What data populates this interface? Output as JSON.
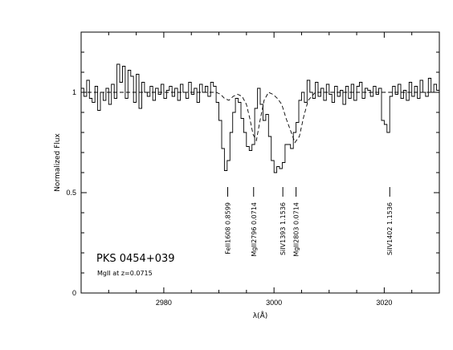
{
  "chart_data": {
    "type": "line",
    "title": "PKS 0454+039",
    "subtitle": "MgII at z=0.0715",
    "xlabel": "λ(Å)",
    "ylabel": "Normalized Flux",
    "xlim": [
      2965,
      3030
    ],
    "ylim": [
      0,
      1.3
    ],
    "x_ticks": [
      2980,
      3000,
      3020
    ],
    "y_ticks": [
      0,
      0.5,
      1
    ],
    "y_tick_labels": [
      "0",
      "0.5",
      "1"
    ],
    "grid": false,
    "series": [
      {
        "style": "solid-step",
        "x": [
          2965.0,
          2965.5,
          2966.0,
          2966.5,
          2967.0,
          2967.5,
          2968.0,
          2968.5,
          2969.0,
          2969.5,
          2970.0,
          2970.5,
          2971.0,
          2971.5,
          2972.0,
          2972.5,
          2973.0,
          2973.5,
          2974.0,
          2974.5,
          2975.0,
          2975.5,
          2976.0,
          2976.5,
          2977.0,
          2977.5,
          2978.0,
          2978.5,
          2979.0,
          2979.5,
          2980.0,
          2980.5,
          2981.0,
          2981.5,
          2982.0,
          2982.5,
          2983.0,
          2983.5,
          2984.0,
          2984.5,
          2985.0,
          2985.5,
          2986.0,
          2986.5,
          2987.0,
          2987.5,
          2988.0,
          2988.5,
          2989.0,
          2989.5,
          2990.0,
          2990.5,
          2991.0,
          2991.5,
          2992.0,
          2992.5,
          2993.0,
          2993.5,
          2994.0,
          2994.5,
          2995.0,
          2995.5,
          2996.0,
          2996.5,
          2997.0,
          2997.5,
          2998.0,
          2998.5,
          2999.0,
          2999.5,
          3000.0,
          3000.5,
          3001.0,
          3001.5,
          3002.0,
          3002.5,
          3003.0,
          3003.5,
          3004.0,
          3004.5,
          3005.0,
          3005.5,
          3006.0,
          3006.5,
          3007.0,
          3007.5,
          3008.0,
          3008.5,
          3009.0,
          3009.5,
          3010.0,
          3010.5,
          3011.0,
          3011.5,
          3012.0,
          3012.5,
          3013.0,
          3013.5,
          3014.0,
          3014.5,
          3015.0,
          3015.5,
          3016.0,
          3016.5,
          3017.0,
          3017.5,
          3018.0,
          3018.5,
          3019.0,
          3019.5,
          3020.0,
          3020.5,
          3021.0,
          3021.5,
          3022.0,
          3022.5,
          3023.0,
          3023.5,
          3024.0,
          3024.5,
          3025.0,
          3025.5,
          3026.0,
          3026.5,
          3027.0,
          3027.5,
          3028.0,
          3028.5,
          3029.0,
          3029.5
        ],
        "y": [
          1.02,
          0.98,
          1.06,
          0.97,
          0.95,
          1.03,
          0.91,
          1.0,
          0.96,
          1.02,
          0.94,
          1.04,
          0.97,
          1.14,
          1.05,
          1.13,
          0.97,
          1.11,
          1.08,
          0.95,
          1.09,
          0.92,
          1.05,
          1.0,
          0.98,
          1.03,
          0.96,
          1.02,
          0.99,
          1.04,
          0.97,
          1.01,
          1.03,
          0.98,
          1.02,
          0.96,
          1.04,
          1.0,
          0.97,
          1.05,
          0.99,
          1.02,
          0.95,
          1.04,
          1.0,
          1.03,
          0.98,
          1.05,
          1.03,
          0.95,
          0.86,
          0.72,
          0.61,
          0.66,
          0.8,
          0.9,
          0.97,
          0.95,
          0.87,
          0.8,
          0.73,
          0.71,
          0.74,
          0.92,
          1.02,
          0.94,
          0.86,
          0.89,
          0.78,
          0.66,
          0.6,
          0.63,
          0.62,
          0.65,
          0.74,
          0.74,
          0.72,
          0.8,
          0.85,
          0.96,
          1.0,
          0.95,
          1.06,
          1.0,
          0.97,
          1.05,
          0.98,
          1.02,
          0.96,
          1.04,
          0.99,
          0.95,
          1.03,
          0.98,
          1.01,
          0.94,
          1.03,
          0.97,
          1.04,
          0.96,
          1.03,
          1.05,
          0.97,
          1.02,
          1.01,
          0.98,
          1.03,
          0.99,
          1.02,
          0.86,
          0.84,
          0.8,
          0.98,
          1.03,
          0.99,
          1.04,
          0.97,
          1.01,
          0.96,
          1.05,
          0.98,
          1.03,
          0.97,
          1.06,
          1.0,
          0.98,
          1.07,
          1.0,
          1.04,
          1.01
        ]
      },
      {
        "style": "dashed",
        "x": [
          2965,
          2989.5,
          2990.3,
          2991.0,
          2991.8,
          2992.6,
          2993.4,
          2994.2,
          2995.0,
          2995.6,
          2996.2,
          2996.8,
          2997.4,
          2998.2,
          2999.0,
          2999.8,
          3000.6,
          3001.4,
          3002.2,
          3003.0,
          3003.8,
          3004.6,
          3005.4,
          3006.2,
          3007.5,
          3030
        ],
        "y": [
          1.0,
          1.0,
          0.99,
          0.97,
          0.96,
          0.98,
          0.99,
          0.98,
          0.94,
          0.87,
          0.79,
          0.76,
          0.85,
          0.96,
          1.0,
          0.99,
          0.97,
          0.94,
          0.87,
          0.81,
          0.75,
          0.78,
          0.88,
          0.96,
          1.0,
          1.0
        ]
      }
    ],
    "line_markers": [
      {
        "ion": "FeII1608",
        "z": "0.8599",
        "x": 2991.6
      },
      {
        "ion": "MgII2796",
        "z": "0.0714",
        "x": 2996.3
      },
      {
        "ion": "SiIV1393",
        "z": "1.1536",
        "x": 3001.6
      },
      {
        "ion": "MgII2803",
        "z": "0.0714",
        "x": 3004.0
      },
      {
        "ion": "SiIV1402",
        "z": "1.1536",
        "x": 3021.0
      }
    ]
  }
}
